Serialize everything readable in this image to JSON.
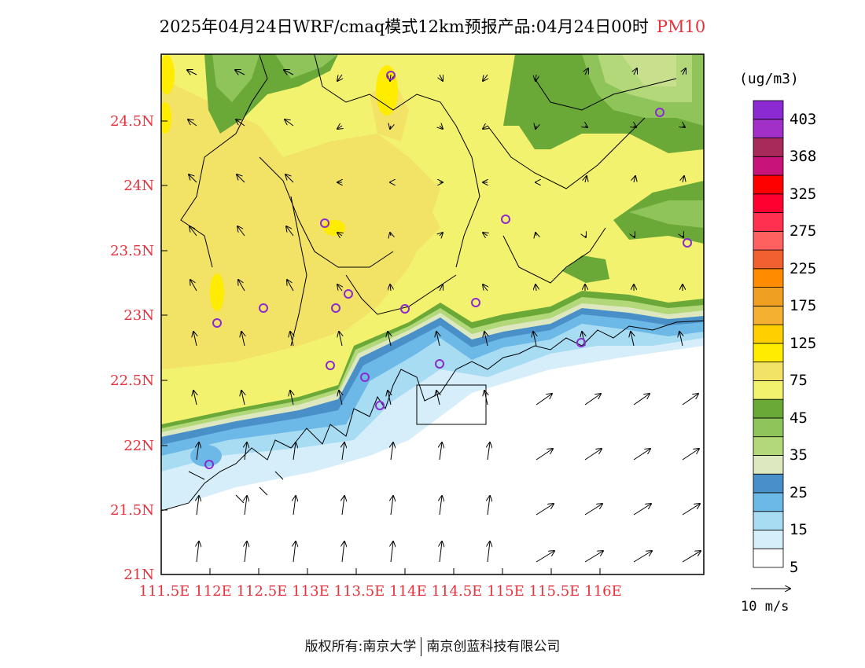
{
  "title": {
    "text": "2025年04月24日WRF/cmaq模式12km预报产品:04月24日00时",
    "variable": "PM10"
  },
  "axes": {
    "y_ticks": [
      "21N",
      "21.5N",
      "22N",
      "22.5N",
      "23N",
      "23.5N",
      "24N",
      "24.5N"
    ],
    "x_ticks": [
      "111.5E",
      "112E",
      "112.5E",
      "113E",
      "113.5E",
      "114E",
      "114.5E",
      "115E",
      "115.5E",
      "116E"
    ],
    "tick_color": "#e8303a"
  },
  "colorbar": {
    "unit": "(ug/m3)",
    "labels": [
      "403",
      "368",
      "325",
      "275",
      "225",
      "175",
      "125",
      "75",
      "45",
      "35",
      "25",
      "15",
      "5"
    ],
    "colors": [
      "#ffffff",
      "#d6eefa",
      "#a8dcf3",
      "#6cb8e6",
      "#4a90c8",
      "#dde8c0",
      "#b2d87a",
      "#8ec45a",
      "#6aa838",
      "#f2f26e",
      "#f2e266",
      "#ffec00",
      "#ffd000",
      "#f4b030",
      "#f0a020",
      "#ff8c00",
      "#f06030",
      "#ff6060",
      "#ff3050",
      "#ff0030",
      "#ff0000",
      "#c8147a",
      "#a82a5a",
      "#a030c8",
      "#8a2ad0"
    ]
  },
  "wind_reference": "10 m/s",
  "footer": {
    "left": "版权所有:南京大学",
    "right": "南京创蓝科技有限公司"
  }
}
